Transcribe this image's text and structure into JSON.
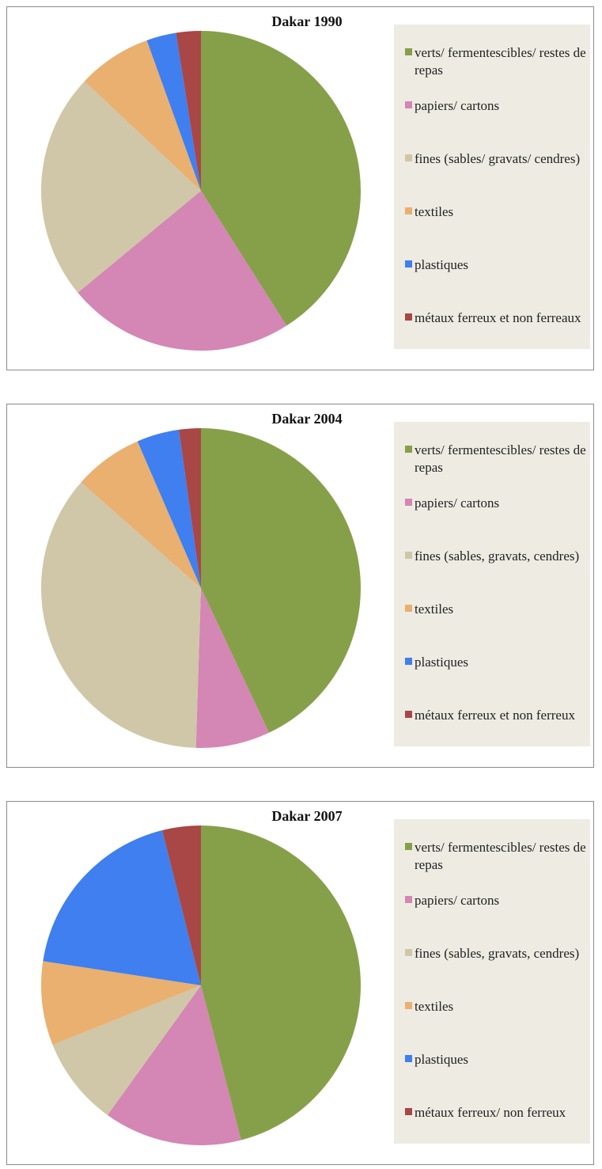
{
  "chart_data": [
    {
      "type": "pie",
      "title": "Dakar 1990",
      "categories": [
        "verts/ fermentescibles/ restes de repas",
        "papiers/ cartons",
        "fines (sables/ gravats/ cendres)",
        "textiles",
        "plastiques",
        "métaux ferreux et non ferreaux"
      ],
      "values": [
        41,
        23,
        23,
        7.5,
        3,
        2.5
      ],
      "colors": [
        "#86a04a",
        "#d486b4",
        "#cfc7a8",
        "#e9b070",
        "#3f7fef",
        "#a94646"
      ]
    },
    {
      "type": "pie",
      "title": "Dakar 2004",
      "categories": [
        "verts/ fermentescibles/ restes de repas",
        "papiers/ cartons",
        "fines (sables, gravats, cendres)",
        "textiles",
        "plastiques",
        "métaux ferreux et non ferreux"
      ],
      "values": [
        43,
        7.5,
        36,
        7,
        4.3,
        2.2
      ],
      "colors": [
        "#86a04a",
        "#d486b4",
        "#cfc7a8",
        "#e9b070",
        "#3f7fef",
        "#a94646"
      ]
    },
    {
      "type": "pie",
      "title": "Dakar 2007",
      "categories": [
        "verts/ fermentescibles/ restes de repas",
        "papiers/ cartons",
        "fines (sables, gravats, cendres)",
        "textiles",
        "plastiques",
        "métaux ferreux/ non ferreux"
      ],
      "values": [
        46,
        14,
        9,
        8.5,
        18.7,
        3.9
      ],
      "colors": [
        "#86a04a",
        "#d486b4",
        "#cfc7a8",
        "#e9b070",
        "#3f7fef",
        "#a94646"
      ]
    }
  ]
}
